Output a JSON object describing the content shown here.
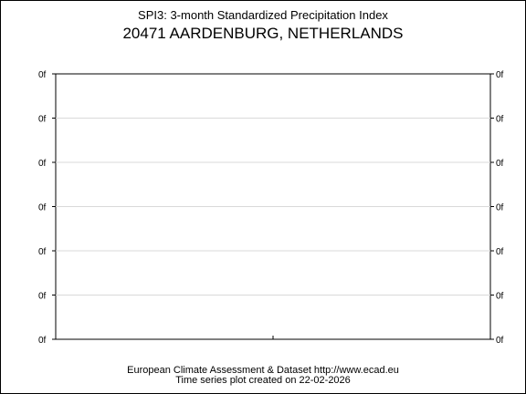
{
  "title": "SPI3: 3-month Standardized Precipitation Index",
  "subtitle": "20471 AARDENBURG, NETHERLANDS",
  "footer": {
    "line1": "European Climate Assessment & Dataset  http://www.ecad.eu",
    "line2": "Time series plot created on 22-02-2026"
  },
  "chart_data": {
    "type": "line",
    "title": "SPI3: 3-month Standardized Precipitation Index",
    "subtitle": "20471 AARDENBURG, NETHERLANDS",
    "xlabel": "",
    "ylabel": "",
    "y_tick_labels": [
      "0f",
      "0f",
      "0f",
      "0f",
      "0f",
      "0f",
      "0f"
    ],
    "series": [],
    "grid": true
  }
}
